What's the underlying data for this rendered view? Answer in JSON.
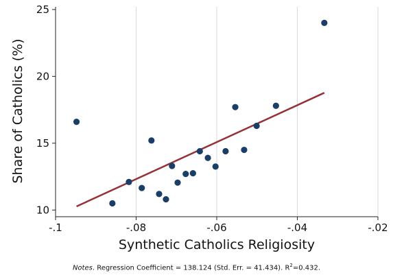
{
  "chart_data": {
    "type": "scatter",
    "xlabel": "Synthetic Catholics Religiosity",
    "ylabel": "Share of Catholics (%)",
    "xlim": [
      -0.1,
      -0.02
    ],
    "ylim": [
      9.5,
      25.2
    ],
    "xticks": [
      -0.1,
      -0.08,
      -0.06,
      -0.04,
      -0.02
    ],
    "xtick_labels": [
      "-.1",
      "-.08",
      "-.06",
      "-.04",
      "-.02"
    ],
    "yticks": [
      10,
      15,
      20,
      25
    ],
    "ytick_labels": [
      "10",
      "15",
      "20",
      "25"
    ],
    "grid": "vertical",
    "legend": "none",
    "colors": {
      "points": "#1a3e66",
      "fit_line": "#943236"
    },
    "points": [
      {
        "x": -0.0948,
        "y": 16.6
      },
      {
        "x": -0.0859,
        "y": 10.5
      },
      {
        "x": -0.0818,
        "y": 12.1
      },
      {
        "x": -0.0786,
        "y": 11.65
      },
      {
        "x": -0.0762,
        "y": 15.2
      },
      {
        "x": -0.0743,
        "y": 11.2
      },
      {
        "x": -0.0726,
        "y": 10.8
      },
      {
        "x": -0.0711,
        "y": 13.3
      },
      {
        "x": -0.0697,
        "y": 12.05
      },
      {
        "x": -0.0677,
        "y": 12.7
      },
      {
        "x": -0.0659,
        "y": 12.75
      },
      {
        "x": -0.0642,
        "y": 14.4
      },
      {
        "x": -0.0622,
        "y": 13.9
      },
      {
        "x": -0.0603,
        "y": 13.25
      },
      {
        "x": -0.0578,
        "y": 14.4
      },
      {
        "x": -0.0554,
        "y": 17.7
      },
      {
        "x": -0.0532,
        "y": 14.5
      },
      {
        "x": -0.0501,
        "y": 16.3
      },
      {
        "x": -0.0453,
        "y": 17.8
      },
      {
        "x": -0.0333,
        "y": 24.0
      }
    ],
    "fit_line": {
      "x": [
        -0.0948,
        -0.0333
      ],
      "y": [
        10.27,
        18.77
      ]
    }
  },
  "note": {
    "lead": "Notes",
    "text": ". Regression Coefficient = 138.124 (Std. Err. = 41.434). R",
    "sup": "2",
    "tail": "=0.432."
  }
}
